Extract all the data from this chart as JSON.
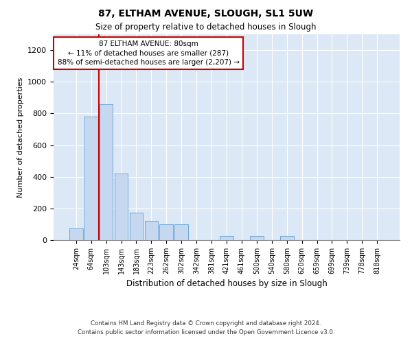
{
  "title1": "87, ELTHAM AVENUE, SLOUGH, SL1 5UW",
  "title2": "Size of property relative to detached houses in Slough",
  "xlabel": "Distribution of detached houses by size in Slough",
  "ylabel": "Number of detached properties",
  "footnote1": "Contains HM Land Registry data © Crown copyright and database right 2024.",
  "footnote2": "Contains public sector information licensed under the Open Government Licence v3.0.",
  "annotation_line1": "87 ELTHAM AVENUE: 80sqm",
  "annotation_line2": "← 11% of detached houses are smaller (287)",
  "annotation_line3": "88% of semi-detached houses are larger (2,207) →",
  "bar_color": "#c5d8f0",
  "bar_edge_color": "#5a9fd4",
  "background_color": "#dce8f5",
  "redline_color": "#cc0000",
  "categories": [
    "24sqm",
    "64sqm",
    "103sqm",
    "143sqm",
    "183sqm",
    "223sqm",
    "262sqm",
    "302sqm",
    "342sqm",
    "381sqm",
    "421sqm",
    "461sqm",
    "500sqm",
    "540sqm",
    "580sqm",
    "620sqm",
    "659sqm",
    "699sqm",
    "739sqm",
    "778sqm",
    "818sqm"
  ],
  "values": [
    75,
    780,
    860,
    420,
    175,
    120,
    100,
    100,
    0,
    0,
    25,
    0,
    25,
    0,
    25,
    0,
    0,
    0,
    0,
    0,
    0
  ],
  "redline_x": 1.5,
  "ylim": [
    0,
    1300
  ],
  "yticks": [
    0,
    200,
    400,
    600,
    800,
    1000,
    1200
  ]
}
